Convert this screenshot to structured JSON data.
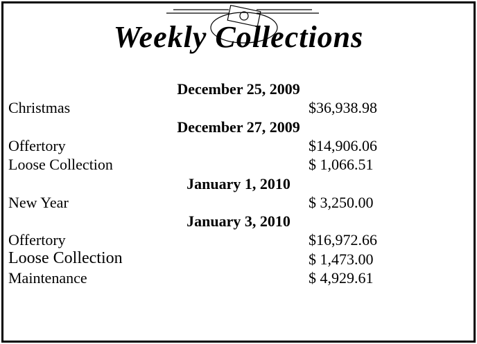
{
  "title": "Weekly Collections",
  "sections": [
    {
      "date": "December 25, 2009",
      "items": [
        {
          "label": "Christmas",
          "amount": "$36,938.98"
        }
      ]
    },
    {
      "date": "December 27, 2009",
      "items": [
        {
          "label": "Offertory",
          "amount": "$14,906.06"
        },
        {
          "label": "Loose Collection",
          "amount": "$ 1,066.51"
        }
      ]
    },
    {
      "date": "January 1, 2010",
      "items": [
        {
          "label": "New Year",
          "amount": "$ 3,250.00"
        }
      ]
    },
    {
      "date": "January 3, 2010",
      "items": [
        {
          "label": "Offertory",
          "amount": "$16,972.66"
        },
        {
          "label": "Loose Collection",
          "amount": "$ 1,473.00"
        },
        {
          "label": "Maintenance",
          "amount": "$ 4,929.61"
        }
      ]
    }
  ]
}
